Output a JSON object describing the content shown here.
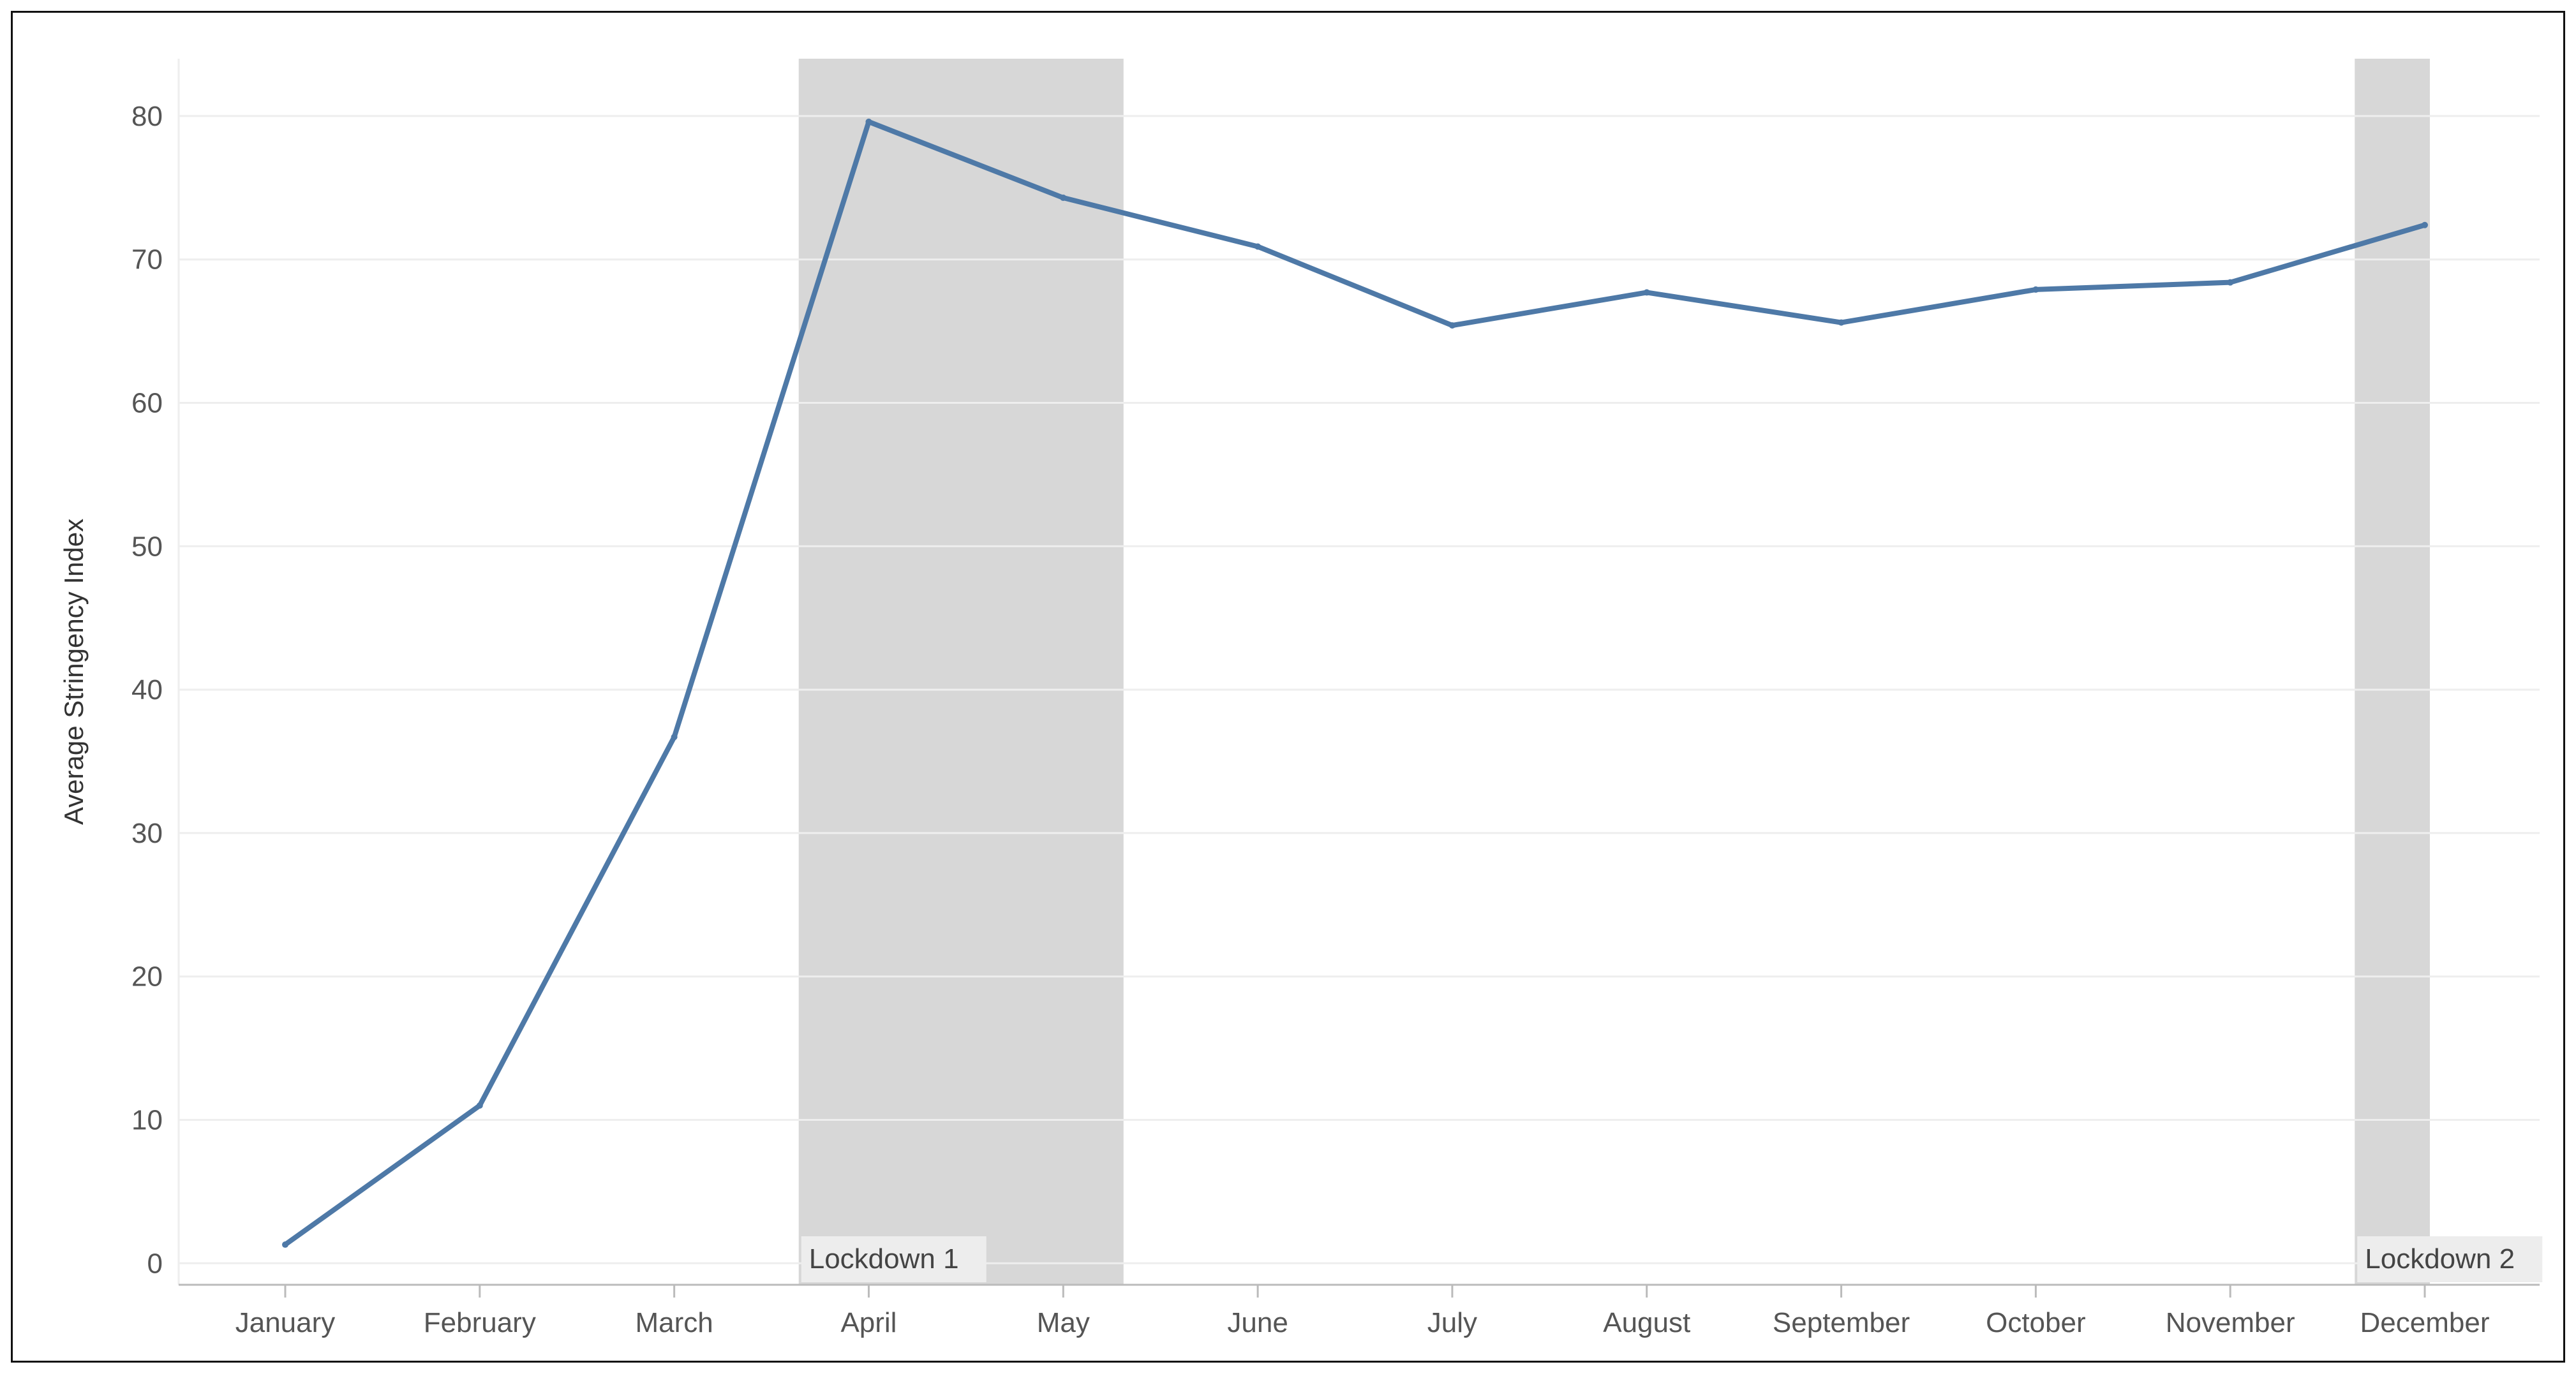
{
  "chart_data": {
    "type": "line",
    "title": "",
    "xlabel": "",
    "ylabel": "Average Stringency Index",
    "ylim": [
      -1.5,
      84
    ],
    "yticks": [
      0,
      10,
      20,
      30,
      40,
      50,
      60,
      70,
      80
    ],
    "grid": true,
    "categories": [
      "January",
      "February",
      "March",
      "April",
      "May",
      "June",
      "July",
      "August",
      "September",
      "October",
      "November",
      "December"
    ],
    "series": [
      {
        "values": [
          1.3,
          11.0,
          36.7,
          79.6,
          74.3,
          70.9,
          65.4,
          67.7,
          65.6,
          67.9,
          68.4,
          72.4
        ]
      }
    ],
    "shaded_periods": [
      {
        "label": "Lockdown 1",
        "start": "March",
        "end": "May"
      },
      {
        "label": "Lockdown 2",
        "start": "November",
        "end": "December"
      }
    ],
    "colors": {
      "line": "#4E79A7",
      "shade": "#D7D7D7",
      "grid": "#EEEEEE",
      "axis": "#BBBBBB"
    }
  }
}
